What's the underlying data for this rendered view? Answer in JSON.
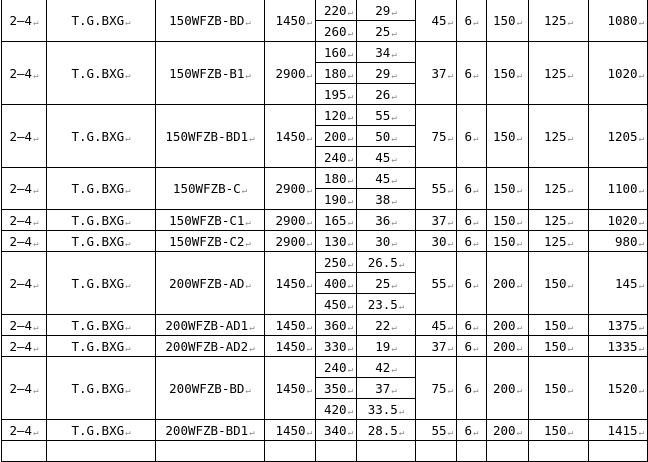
{
  "rows": [
    {
      "range": "2—4",
      "brand": "T.G.BXG",
      "model": "150WFZB-BD",
      "speed": "1450",
      "points": [
        [
          "220",
          "29"
        ],
        [
          "260",
          "25"
        ]
      ],
      "power": "45",
      "a": "6",
      "inlet": "150",
      "outlet": "125",
      "weight": "1080"
    },
    {
      "range": "2—4",
      "brand": "T.G.BXG",
      "model": "150WFZB-B1",
      "speed": "2900",
      "points": [
        [
          "160",
          "34"
        ],
        [
          "180",
          "29"
        ],
        [
          "195",
          "26"
        ]
      ],
      "power": "37",
      "a": "6",
      "inlet": "150",
      "outlet": "125",
      "weight": "1020"
    },
    {
      "range": "2—4",
      "brand": "T.G.BXG",
      "model": "150WFZB-BD1",
      "speed": "1450",
      "points": [
        [
          "120",
          "55"
        ],
        [
          "200",
          "50"
        ],
        [
          "240",
          "45"
        ]
      ],
      "power": "75",
      "a": "6",
      "inlet": "150",
      "outlet": "125",
      "weight": "1205"
    },
    {
      "range": "2—4",
      "brand": "T.G.BXG",
      "model": "150WFZB-C",
      "speed": "2900",
      "points": [
        [
          "180",
          "45"
        ],
        [
          "190",
          "38"
        ]
      ],
      "power": "55",
      "a": "6",
      "inlet": "150",
      "outlet": "125",
      "weight": "1100"
    },
    {
      "range": "2—4",
      "brand": "T.G.BXG",
      "model": "150WFZB-C1",
      "speed": "2900",
      "points": [
        [
          "165",
          "36"
        ]
      ],
      "power": "37",
      "a": "6",
      "inlet": "150",
      "outlet": "125",
      "weight": "1020"
    },
    {
      "range": "2—4",
      "brand": "T.G.BXG",
      "model": "150WFZB-C2",
      "speed": "2900",
      "points": [
        [
          "130",
          "30"
        ]
      ],
      "power": "30",
      "a": "6",
      "inlet": "150",
      "outlet": "125",
      "weight": "980"
    },
    {
      "range": "2—4",
      "brand": "T.G.BXG",
      "model": "200WFZB-AD",
      "speed": "1450",
      "points": [
        [
          "250",
          "26.5"
        ],
        [
          "400",
          "25"
        ],
        [
          "450",
          "23.5"
        ]
      ],
      "power": "55",
      "a": "6",
      "inlet": "200",
      "outlet": "150",
      "weight": "145"
    },
    {
      "range": "2—4",
      "brand": "T.G.BXG",
      "model": "200WFZB-AD1",
      "speed": "1450",
      "points": [
        [
          "360",
          "22"
        ]
      ],
      "power": "45",
      "a": "6",
      "inlet": "200",
      "outlet": "150",
      "weight": "1375"
    },
    {
      "range": "2—4",
      "brand": "T.G.BXG",
      "model": "200WFZB-AD2",
      "speed": "1450",
      "points": [
        [
          "330",
          "19"
        ]
      ],
      "power": "37",
      "a": "6",
      "inlet": "200",
      "outlet": "150",
      "weight": "1335"
    },
    {
      "range": "2—4",
      "brand": "T.G.BXG",
      "model": "200WFZB-BD",
      "speed": "1450",
      "points": [
        [
          "240",
          "42"
        ],
        [
          "350",
          "37"
        ],
        [
          "420",
          "33.5"
        ]
      ],
      "power": "75",
      "a": "6",
      "inlet": "200",
      "outlet": "150",
      "weight": "1520"
    },
    {
      "range": "2—4",
      "brand": "T.G.BXG",
      "model": "200WFZB-BD1",
      "speed": "1450",
      "points": [
        [
          "340",
          "28.5"
        ]
      ],
      "power": "55",
      "a": "6",
      "inlet": "200",
      "outlet": "150",
      "weight": "1415"
    }
  ]
}
